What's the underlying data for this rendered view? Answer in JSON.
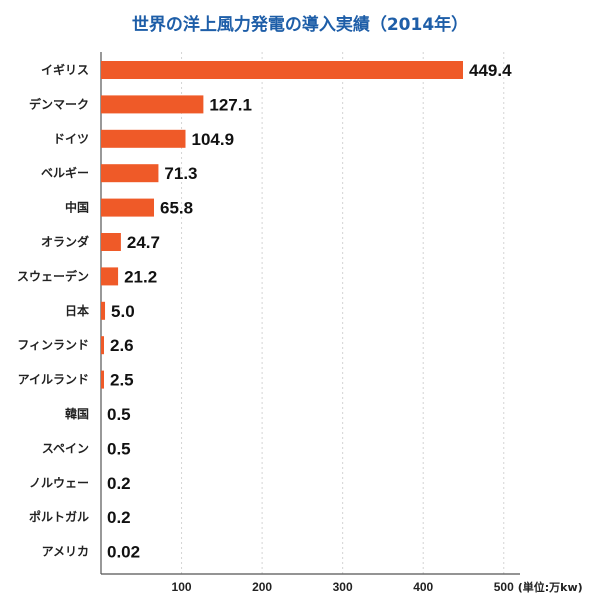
{
  "chart_data": {
    "type": "bar",
    "orientation": "horizontal",
    "title": "世界の洋上風力発電の導入実績（2014年）",
    "unit_label": "(単位:万kw)",
    "categories": [
      "イギリス",
      "デンマーク",
      "ドイツ",
      "ベルギー",
      "中国",
      "オランダ",
      "スウェーデン",
      "日本",
      "フィンランド",
      "アイルランド",
      "韓国",
      "スペイン",
      "ノルウェー",
      "ポルトガル",
      "アメリカ"
    ],
    "values": [
      449.4,
      127.1,
      104.9,
      71.3,
      65.8,
      24.7,
      21.2,
      5.0,
      2.6,
      2.5,
      0.5,
      0.5,
      0.2,
      0.2,
      0.02
    ],
    "value_labels": [
      "449.4",
      "127.1",
      "104.9",
      "71.3",
      "65.8",
      "24.7",
      "21.2",
      "5.0",
      "2.6",
      "2.5",
      "0.5",
      "0.5",
      "0.2",
      "0.2",
      "0.02"
    ],
    "xticks": [
      100,
      200,
      300,
      400,
      500
    ],
    "xlim": [
      0,
      520
    ],
    "grid": true,
    "bar_color": "#ef5a28",
    "grid_color": "#d4d4d4",
    "title_color": "#1e5ea8"
  }
}
